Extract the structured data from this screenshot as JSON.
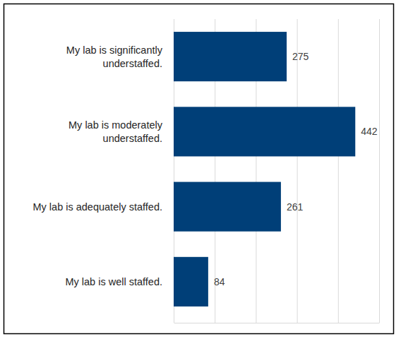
{
  "chart_data": {
    "type": "bar",
    "orientation": "horizontal",
    "categories": [
      "My lab is significantly understaffed.",
      "My lab is moderately understaffed.",
      "My lab is adequately staffed.",
      "My lab is well staffed."
    ],
    "values": [
      275,
      442,
      261,
      84
    ],
    "color": "#003f78",
    "xlim": [
      0,
      500
    ],
    "xticks": [
      0,
      100,
      200,
      300,
      400,
      500
    ],
    "grid": true,
    "tick_labels": false,
    "data_labels": true
  }
}
